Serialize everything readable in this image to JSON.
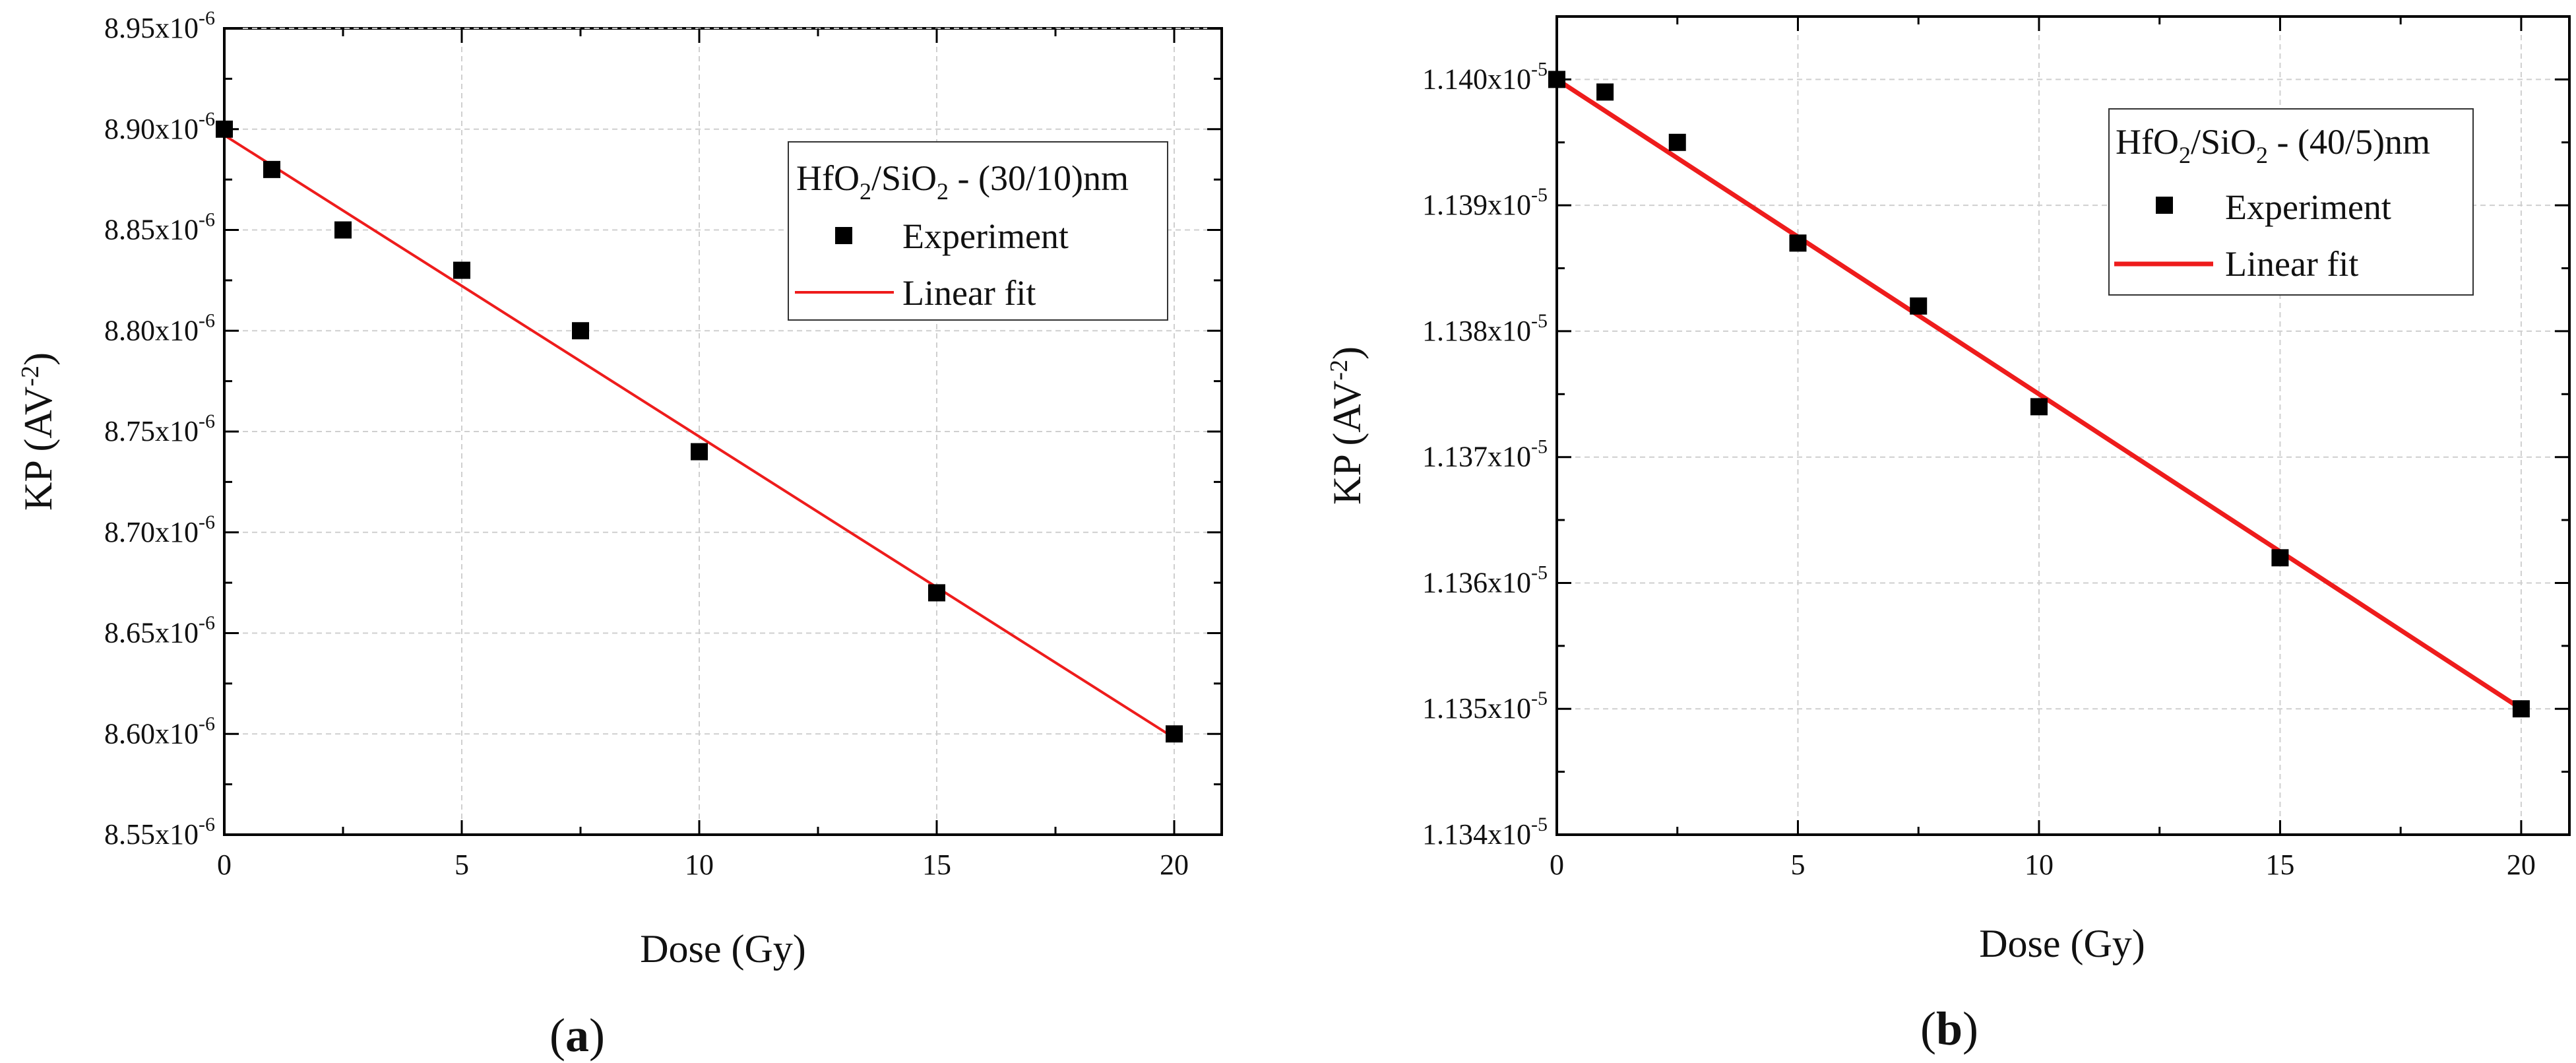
{
  "chart_data": [
    {
      "type": "scatter",
      "panel_label": "a",
      "title": "",
      "xlabel": "Dose (Gy)",
      "ylabel_base": "KP (AV",
      "ylabel_sup": "-2",
      "ylabel_close": ")",
      "xlim": [
        0,
        21
      ],
      "ylim": [
        8.55,
        8.95
      ],
      "y_exponent": "-6",
      "x_ticks": [
        0,
        5,
        10,
        15,
        20
      ],
      "y_ticks": [
        8.55,
        8.6,
        8.65,
        8.7,
        8.75,
        8.8,
        8.85,
        8.9,
        8.95
      ],
      "y_tick_labels": [
        "8.55x10",
        "8.60x10",
        "8.65x10",
        "8.70x10",
        "8.75x10",
        "8.80x10",
        "8.85x10",
        "8.90x10",
        "8.95x10"
      ],
      "legend_title": {
        "base": "HfO",
        "sub1": "2",
        "mid": "/SiO",
        "sub2": "2",
        "tail": " - (30/10)nm"
      },
      "series": [
        {
          "name": "Experiment",
          "kind": "points",
          "x": [
            0,
            1,
            2.5,
            5,
            7.5,
            10,
            15,
            20
          ],
          "y": [
            8.9,
            8.88,
            8.85,
            8.83,
            8.8,
            8.74,
            8.67,
            8.6
          ]
        },
        {
          "name": "Linear fit",
          "kind": "line",
          "x": [
            0,
            20
          ],
          "y": [
            8.897,
            8.598
          ]
        }
      ],
      "colors": {
        "points": "#000000",
        "fit": "#ee1c1c"
      }
    },
    {
      "type": "scatter",
      "panel_label": "b",
      "title": "",
      "xlabel": "Dose (Gy)",
      "ylabel_base": "KP (AV",
      "ylabel_sup": "-2",
      "ylabel_close": ")",
      "xlim": [
        0,
        21
      ],
      "ylim": [
        1.134,
        1.1405
      ],
      "y_exponent": "-5",
      "x_ticks": [
        0,
        5,
        10,
        15,
        20
      ],
      "y_ticks": [
        1.134,
        1.135,
        1.136,
        1.137,
        1.138,
        1.139,
        1.14
      ],
      "y_tick_labels": [
        "1.134x10",
        "1.135x10",
        "1.136x10",
        "1.137x10",
        "1.138x10",
        "1.139x10",
        "1.140x10"
      ],
      "legend_title": {
        "base": "HfO",
        "sub1": "2",
        "mid": "/SiO",
        "sub2": "2",
        "tail": " - (40/5)nm"
      },
      "series": [
        {
          "name": "Experiment",
          "kind": "points",
          "x": [
            0,
            1,
            2.5,
            5,
            7.5,
            10,
            15,
            20
          ],
          "y": [
            1.14,
            1.1399,
            1.1395,
            1.1387,
            1.1382,
            1.1374,
            1.1362,
            1.135
          ]
        },
        {
          "name": "Linear fit",
          "kind": "line",
          "x": [
            0,
            20
          ],
          "y": [
            1.14,
            1.135
          ]
        }
      ],
      "colors": {
        "points": "#000000",
        "fit": "#ee1c1c"
      }
    }
  ]
}
